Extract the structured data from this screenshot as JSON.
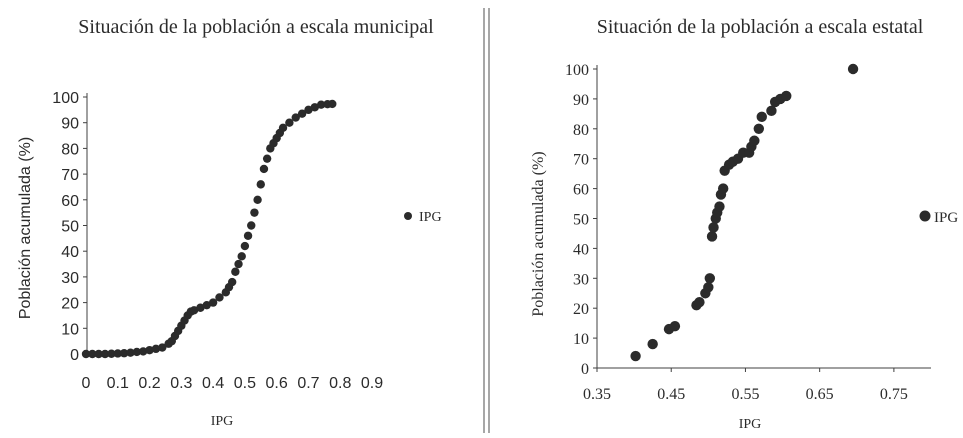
{
  "colors": {
    "marker": "#2b2b2b",
    "axis": "#404040",
    "divider": "#8a8a8a"
  },
  "chart_data": [
    {
      "type": "scatter",
      "title": "Situación de la población a escala municipal",
      "xlabel": "IPG",
      "ylabel": "Población acumulada (%)",
      "xlim": [
        0,
        0.9
      ],
      "ylim": [
        0,
        100
      ],
      "x_ticks": [
        "0",
        "0.1",
        "0.2",
        "0.3",
        "0.4",
        "0.5",
        "0.6",
        "0.7",
        "0.8",
        "0.9"
      ],
      "y_ticks": [
        "0",
        "10",
        "20",
        "30",
        "40",
        "50",
        "60",
        "70",
        "80",
        "90",
        "100"
      ],
      "grid": false,
      "legend_position": "right",
      "series": [
        {
          "name": "IPG",
          "x": [
            0.0,
            0.02,
            0.04,
            0.06,
            0.08,
            0.1,
            0.12,
            0.14,
            0.16,
            0.18,
            0.2,
            0.22,
            0.24,
            0.26,
            0.27,
            0.28,
            0.29,
            0.3,
            0.31,
            0.32,
            0.33,
            0.34,
            0.36,
            0.38,
            0.4,
            0.42,
            0.44,
            0.45,
            0.46,
            0.47,
            0.48,
            0.49,
            0.5,
            0.51,
            0.52,
            0.53,
            0.54,
            0.55,
            0.56,
            0.57,
            0.58,
            0.59,
            0.6,
            0.61,
            0.62,
            0.64,
            0.66,
            0.68,
            0.7,
            0.72,
            0.74,
            0.76,
            0.775
          ],
          "y": [
            0.0,
            0.0,
            0.0,
            0.0,
            0.1,
            0.2,
            0.3,
            0.5,
            0.8,
            1.0,
            1.5,
            2.0,
            2.5,
            4.0,
            5.0,
            7.0,
            9.0,
            11.0,
            13.0,
            15.0,
            16.5,
            17.0,
            18.0,
            19.0,
            20.0,
            22.0,
            24.0,
            26.0,
            28.0,
            32.0,
            35.0,
            38.0,
            42.0,
            46.0,
            50.0,
            55.0,
            60.0,
            66.0,
            72.0,
            76.0,
            80.0,
            82.0,
            84.0,
            86.0,
            88.0,
            90.0,
            92.0,
            93.5,
            95.0,
            96.0,
            97.0,
            97.2,
            97.3
          ]
        }
      ]
    },
    {
      "type": "scatter",
      "title": "Situación de la población a escala estatal",
      "xlabel": "IPG",
      "ylabel": "Población acumulada (%)",
      "xlim": [
        0.35,
        0.8
      ],
      "ylim": [
        0,
        100
      ],
      "x_ticks": [
        "0.35",
        "0.45",
        "0.55",
        "0.65",
        "0.75"
      ],
      "y_ticks": [
        "0",
        "10",
        "20",
        "30",
        "40",
        "50",
        "60",
        "70",
        "80",
        "90",
        "100"
      ],
      "grid": false,
      "legend_position": "right",
      "series": [
        {
          "name": "IPG",
          "x": [
            0.402,
            0.425,
            0.447,
            0.455,
            0.484,
            0.488,
            0.496,
            0.5,
            0.502,
            0.505,
            0.507,
            0.51,
            0.512,
            0.515,
            0.517,
            0.52,
            0.522,
            0.528,
            0.533,
            0.54,
            0.547,
            0.555,
            0.558,
            0.562,
            0.568,
            0.572,
            0.585,
            0.59,
            0.597,
            0.605,
            0.695
          ],
          "y": [
            4,
            8,
            13,
            14,
            21,
            22,
            25,
            27,
            30,
            44,
            47,
            50,
            52,
            54,
            58,
            60,
            66,
            68,
            69,
            70,
            72,
            72,
            74,
            76,
            80,
            84,
            86,
            89,
            90,
            91,
            100
          ]
        }
      ]
    }
  ]
}
